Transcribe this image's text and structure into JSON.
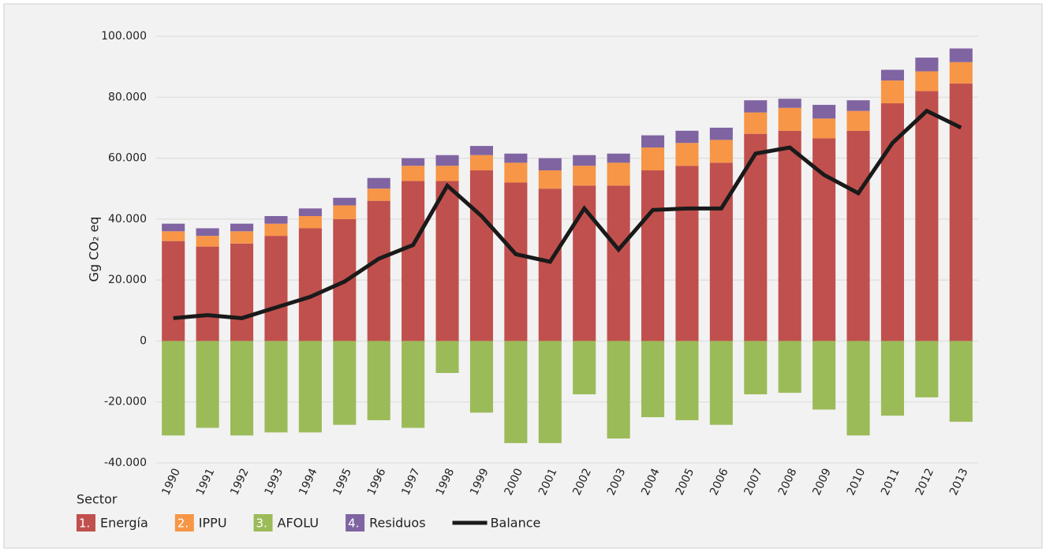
{
  "chart_data": {
    "type": "bar",
    "stacked": true,
    "y_label": "Gg CO₂ eq",
    "legend_title": "Sector",
    "categories": [
      "1990",
      "1991",
      "1992",
      "1993",
      "1994",
      "1995",
      "1996",
      "1997",
      "1998",
      "1999",
      "2000",
      "2001",
      "2002",
      "2003",
      "2004",
      "2005",
      "2006",
      "2007",
      "2008",
      "2009",
      "2010",
      "2011",
      "2012",
      "2013"
    ],
    "series": [
      {
        "name": "Energía",
        "legend_marker": "1.",
        "color": "#c0504d",
        "values": [
          32800,
          31000,
          32000,
          34500,
          37000,
          40000,
          46000,
          52500,
          52500,
          56000,
          52000,
          50000,
          51000,
          51000,
          56000,
          57500,
          58500,
          68000,
          69000,
          66500,
          69000,
          78000,
          82000,
          84500
        ]
      },
      {
        "name": "IPPU",
        "legend_marker": "2.",
        "color": "#f79646",
        "values": [
          3200,
          3500,
          4000,
          4000,
          4000,
          4500,
          4000,
          5000,
          5000,
          5000,
          6500,
          6000,
          6500,
          7500,
          7500,
          7500,
          7500,
          7000,
          7500,
          6500,
          6500,
          7500,
          6500,
          7000
        ]
      },
      {
        "name": "AFOLU",
        "legend_marker": "3.",
        "color": "#9bbb59",
        "values": [
          -31000,
          -28500,
          -31000,
          -30000,
          -30000,
          -27500,
          -26000,
          -28500,
          -10500,
          -23500,
          -33500,
          -33500,
          -17500,
          -32000,
          -25000,
          -26000,
          -27500,
          -17500,
          -17000,
          -22500,
          -31000,
          -24500,
          -18500,
          -26500
        ]
      },
      {
        "name": "Residuos",
        "legend_marker": "4.",
        "color": "#8064a2",
        "values": [
          2500,
          2500,
          2500,
          2500,
          2500,
          2500,
          3500,
          2500,
          3500,
          3000,
          3000,
          4000,
          3500,
          3000,
          4000,
          4000,
          4000,
          4000,
          3000,
          4500,
          3500,
          3500,
          4500,
          4500
        ]
      },
      {
        "name": "Balance",
        "type": "line",
        "color": "#1a1a1a",
        "values": [
          7500,
          8500,
          7500,
          11000,
          14500,
          19500,
          27000,
          31500,
          51000,
          41000,
          28500,
          26000,
          43500,
          30000,
          43000,
          43500,
          43500,
          61500,
          63500,
          54500,
          48500,
          65000,
          75500,
          70000
        ]
      }
    ],
    "ylim": [
      -40000,
      100000
    ],
    "yticks": [
      {
        "value": -40000,
        "label": "-40.000"
      },
      {
        "value": -20000,
        "label": "-20.000"
      },
      0,
      {
        "value": 20000,
        "label": "20.000"
      },
      {
        "value": 40000,
        "label": "40.000"
      },
      {
        "value": 60000,
        "label": "60.000"
      },
      {
        "value": 80000,
        "label": "80.000"
      },
      {
        "value": 100000,
        "label": "100.000"
      }
    ],
    "grid": true
  }
}
